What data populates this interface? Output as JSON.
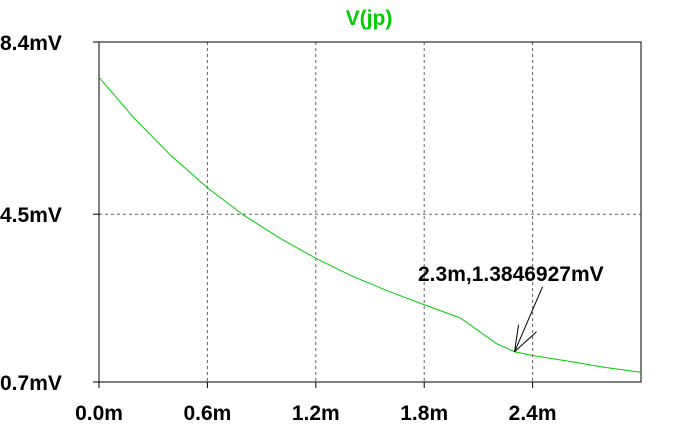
{
  "chart_data": {
    "type": "line",
    "title": "V(jp)",
    "xlabel": "",
    "ylabel": "",
    "xlim": [
      0.0,
      3.0
    ],
    "ylim": [
      0.7,
      8.4
    ],
    "x_unit": "m",
    "y_unit": "mV",
    "x_ticks": [
      0.0,
      0.6,
      1.2,
      1.8,
      2.4
    ],
    "x_tick_labels": [
      "0.0m",
      "0.6m",
      "1.2m",
      "1.8m",
      "2.4m"
    ],
    "y_ticks": [
      0.7,
      4.5,
      8.4
    ],
    "y_tick_labels": [
      "0.7mV",
      "4.5mV",
      "8.4mV"
    ],
    "grid": true,
    "series": [
      {
        "name": "V(jp)",
        "color": "#00cc00",
        "x": [
          0.0,
          0.2,
          0.4,
          0.6,
          0.8,
          1.0,
          1.2,
          1.4,
          1.6,
          1.8,
          2.0,
          2.2,
          2.3,
          2.4,
          2.6,
          2.8,
          3.0
        ],
        "y": [
          7.6,
          6.65,
          5.82,
          5.1,
          4.48,
          3.96,
          3.5,
          3.1,
          2.76,
          2.45,
          2.15,
          1.57,
          1.3847,
          1.3,
          1.17,
          1.03,
          0.92
        ]
      }
    ],
    "annotations": [
      {
        "text": "2.3m,1.3846927mV",
        "x": 2.3,
        "y": 1.3846927
      }
    ]
  }
}
